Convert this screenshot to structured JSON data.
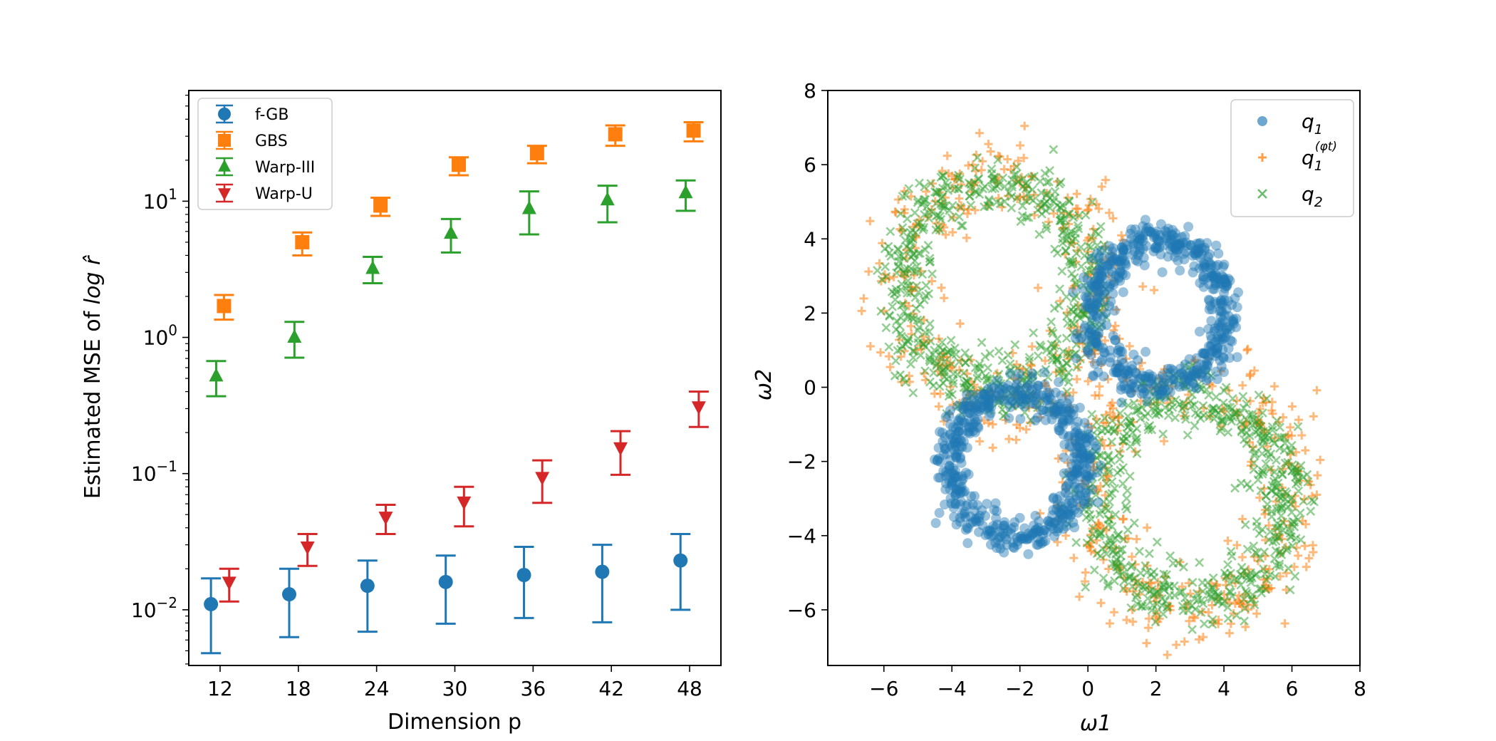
{
  "chart_data": [
    {
      "type": "scatter",
      "subtype": "errorbar",
      "xlabel": "Dimension p",
      "ylabel_prefix": "Estimated MSE of ",
      "ylabel_math": "log r̂",
      "yscale": "log",
      "ylim": [
        0.0039,
        65
      ],
      "xlim": [
        9.6,
        50.4
      ],
      "x": [
        12,
        18,
        24,
        30,
        36,
        42,
        48
      ],
      "x_tick_labels": [
        "12",
        "18",
        "24",
        "30",
        "36",
        "42",
        "48"
      ],
      "y_ticks": [
        {
          "value": 0.01,
          "base": "10",
          "exp": "−2"
        },
        {
          "value": 0.1,
          "base": "10",
          "exp": "−1"
        },
        {
          "value": 1,
          "base": "10",
          "exp": "0"
        },
        {
          "value": 10,
          "base": "10",
          "exp": "1"
        }
      ],
      "legend_position": "top-left",
      "series": [
        {
          "name": "f-GB",
          "color": "#1f77b4",
          "marker": "circle",
          "offset": -0.7,
          "values": [
            0.011,
            0.013,
            0.015,
            0.016,
            0.018,
            0.019,
            0.023
          ],
          "lower": [
            0.0048,
            0.0063,
            0.0069,
            0.0079,
            0.0087,
            0.0081,
            0.01
          ],
          "upper": [
            0.017,
            0.02,
            0.023,
            0.025,
            0.029,
            0.03,
            0.036
          ]
        },
        {
          "name": "GBS",
          "color": "#ff7f0e",
          "marker": "square",
          "offset": 0.3,
          "values": [
            1.7,
            5.0,
            9.3,
            18.5,
            22.5,
            31.0,
            33.0
          ],
          "lower": [
            1.35,
            4.0,
            7.8,
            15.5,
            19.0,
            25.5,
            27.5
          ],
          "upper": [
            2.05,
            5.9,
            10.6,
            21.0,
            25.5,
            36.0,
            38.0
          ]
        },
        {
          "name": "Warp-III",
          "color": "#2ca02c",
          "marker": "triangle-up",
          "offset": -0.3,
          "values": [
            0.52,
            1.0,
            3.2,
            5.8,
            8.8,
            10.2,
            11.5
          ],
          "lower": [
            0.37,
            0.71,
            2.5,
            4.2,
            5.7,
            7.0,
            8.5
          ],
          "upper": [
            0.67,
            1.3,
            3.9,
            7.4,
            11.8,
            13.0,
            14.2
          ]
        },
        {
          "name": "Warp-U",
          "color": "#d62728",
          "marker": "triangle-down",
          "offset": 0.7,
          "values": [
            0.016,
            0.029,
            0.048,
            0.062,
            0.094,
            0.155,
            0.31
          ],
          "lower": [
            0.0115,
            0.021,
            0.036,
            0.041,
            0.061,
            0.098,
            0.22
          ],
          "upper": [
            0.02,
            0.036,
            0.059,
            0.08,
            0.125,
            0.205,
            0.4
          ]
        }
      ]
    },
    {
      "type": "scatter",
      "xlabel": "ω1",
      "ylabel": "ω2",
      "xlim": [
        -7.65,
        8.0
      ],
      "ylim": [
        -7.5,
        8.0
      ],
      "x_ticks": [
        -6,
        -4,
        -2,
        0,
        2,
        4,
        6,
        8
      ],
      "y_ticks": [
        -6,
        -4,
        -2,
        0,
        2,
        4,
        6,
        8
      ],
      "tick_label_format": "minus sign uses U+2212",
      "legend_position": "top-right",
      "legend": [
        "q1",
        "q1^(φt)",
        "q2"
      ],
      "series": [
        {
          "name": "q1",
          "label_main": "q",
          "label_sub": "1",
          "color": "#1f77b4",
          "marker": "circle",
          "alpha": 0.45,
          "description": "two rings of radius ~2",
          "rings": [
            {
              "cx": 2.1,
              "cy": 2.0,
              "r": 1.95
            },
            {
              "cx": -2.1,
              "cy": -2.1,
              "r": 1.95
            }
          ],
          "n_per_ring": 560
        },
        {
          "name": "q1^(φt)",
          "label_main": "q",
          "label_sub": "1",
          "label_sup": "(φt)",
          "color": "#ff7f0e",
          "marker": "plus",
          "alpha": 0.55,
          "description": "two wide rings of radius ~3",
          "rings": [
            {
              "cx": -2.6,
              "cy": 2.6,
              "r": 3.05
            },
            {
              "cx": 3.0,
              "cy": -3.0,
              "r": 3.05
            }
          ],
          "n_per_ring": 340
        },
        {
          "name": "q2",
          "label_main": "q",
          "label_sub": "2",
          "color": "#2ca02c",
          "marker": "x",
          "alpha": 0.5,
          "description": "two rings of radius ~3",
          "rings": [
            {
              "cx": -2.7,
              "cy": 2.7,
              "r": 2.75
            },
            {
              "cx": 3.0,
              "cy": -3.0,
              "r": 2.75
            }
          ],
          "n_per_ring": 600
        }
      ]
    }
  ]
}
